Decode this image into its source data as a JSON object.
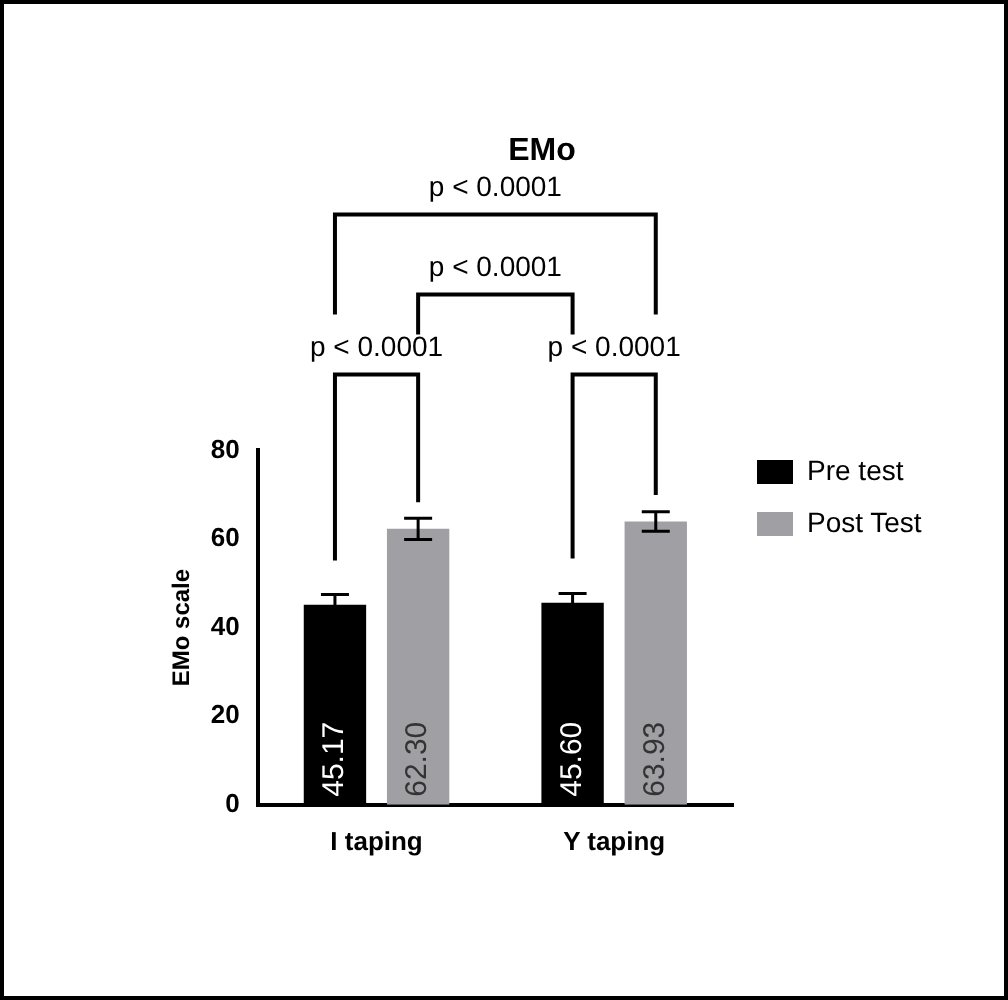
{
  "chart_data": {
    "type": "bar",
    "title": "EMo",
    "ylabel": "EMo scale",
    "categories": [
      "I taping",
      "Y taping"
    ],
    "series": [
      {
        "name": "Pre test",
        "color": "#000000",
        "values": [
          45.17,
          45.6
        ],
        "errors": [
          2.3,
          2.1
        ],
        "value_labels": [
          "45.17",
          "45.60"
        ]
      },
      {
        "name": "Post Test",
        "color": "#a0a0a4",
        "values": [
          62.3,
          63.93
        ],
        "errors": [
          2.4,
          2.2
        ],
        "value_labels": [
          "62.30",
          "63.93"
        ]
      }
    ],
    "ylim": [
      0,
      80
    ],
    "yticks": [
      0,
      20,
      40,
      60,
      80
    ],
    "grid": false,
    "legend": "right",
    "annotations": [
      "p < 0.0001",
      "p < 0.0001",
      "p < 0.0001",
      "p < 0.0001"
    ]
  }
}
